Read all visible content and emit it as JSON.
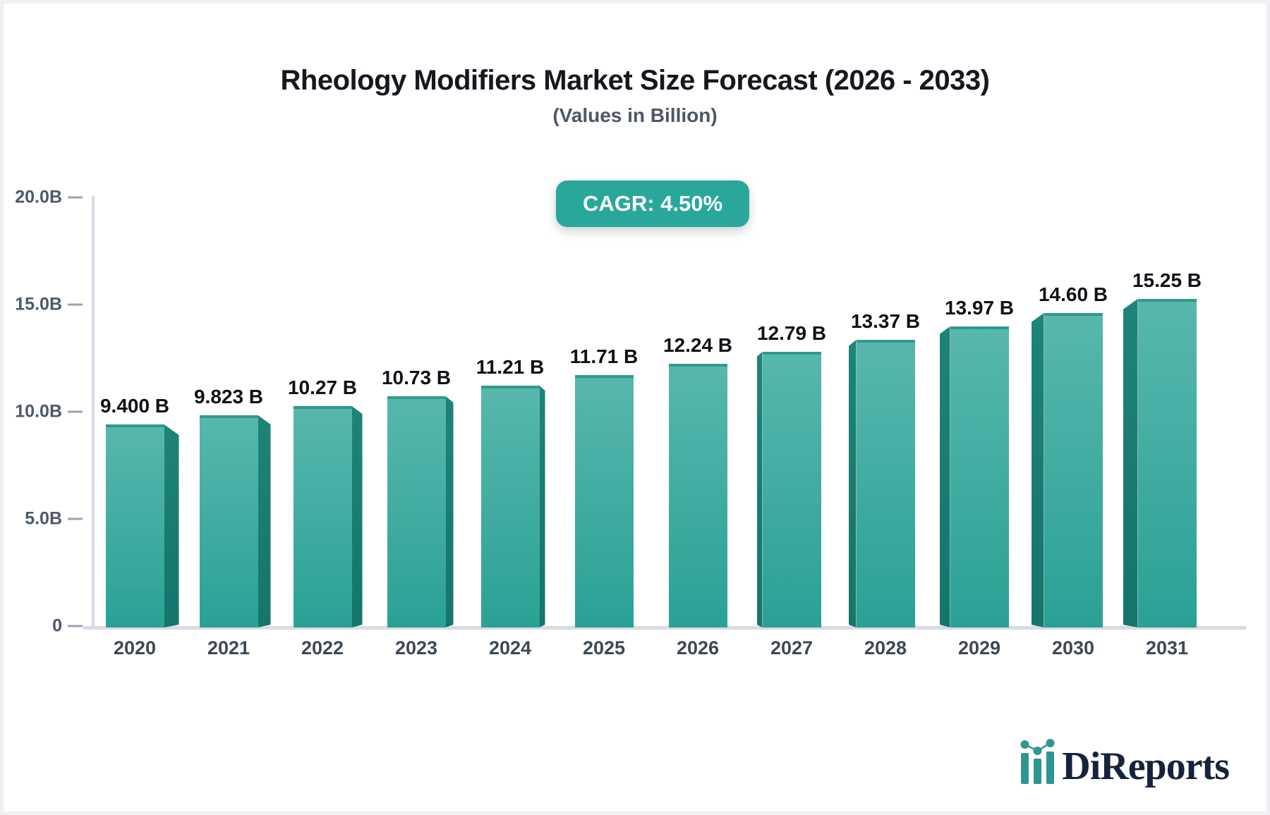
{
  "header": {
    "title": "Rheology Modifiers Market Size Forecast (2026 - 2033)",
    "subtitle": "(Values in Billion)",
    "cagr_label": "CAGR: 4.50%",
    "cagr_badge_color": "#2aa79b"
  },
  "chart_data": {
    "type": "bar",
    "title": "Rheology Modifiers Market Size Forecast (2026 - 2033)",
    "subtitle": "(Values in Billion)",
    "categories": [
      "2020",
      "2021",
      "2022",
      "2023",
      "2024",
      "2025",
      "2026",
      "2027",
      "2028",
      "2029",
      "2030",
      "2031"
    ],
    "values": [
      9.4,
      9.823,
      10.27,
      10.73,
      11.21,
      11.71,
      12.24,
      12.79,
      13.37,
      13.97,
      14.6,
      15.25
    ],
    "value_labels": [
      "9.400 B",
      "9.823 B",
      "10.27 B",
      "10.73 B",
      "11.21 B",
      "11.71 B",
      "12.24 B",
      "12.79 B",
      "13.37 B",
      "13.97 B",
      "14.60 B",
      "15.25 B"
    ],
    "xlabel": "",
    "ylabel": "",
    "ylim": [
      0,
      20
    ],
    "y_tick_values": [
      0,
      5,
      10,
      15,
      20
    ],
    "y_tick_labels": [
      "0",
      "5.0B",
      "10.0B",
      "15.0B",
      "20.0B"
    ],
    "grid": false,
    "legend": false,
    "bar_style": "3d-beveled",
    "bar_color_top": "#58b7ac",
    "bar_color_bottom": "#2aa195",
    "bar_side_color": "#1d8478",
    "annotation": "CAGR: 4.50%"
  },
  "branding": {
    "logo_text": "DiReports",
    "logo_icon": "mini-bar-line-chart-icon",
    "logo_text_color": "#16233c",
    "logo_icon_color": "#2e968f"
  }
}
